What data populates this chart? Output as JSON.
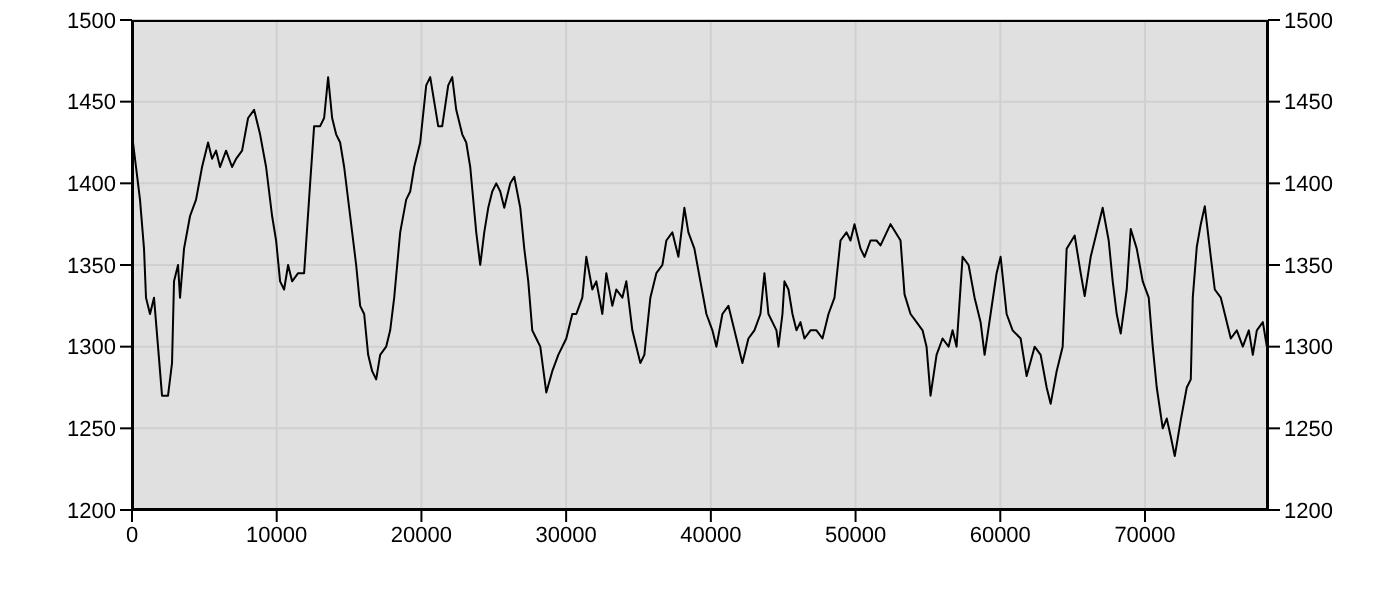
{
  "chart_data": {
    "type": "line",
    "x": [
      0,
      277,
      553,
      830,
      968,
      1245,
      1521,
      1798,
      2075,
      2489,
      2766,
      2904,
      3181,
      3319,
      3596,
      4011,
      4426,
      4841,
      5256,
      5532,
      5809,
      6085,
      6500,
      6915,
      7192,
      7607,
      8022,
      8436,
      8851,
      9266,
      9681,
      9958,
      10234,
      10511,
      10787,
      11064,
      11479,
      11894,
      12309,
      12585,
      13000,
      13277,
      13553,
      13830,
      14107,
      14383,
      14660,
      15075,
      15490,
      15766,
      16043,
      16319,
      16596,
      16873,
      17149,
      17564,
      17841,
      18118,
      18532,
      18947,
      19224,
      19500,
      19915,
      20330,
      20607,
      20883,
      21160,
      21437,
      21851,
      22128,
      22405,
      22820,
      23096,
      23373,
      23788,
      24064,
      24341,
      24617,
      24894,
      25171,
      25447,
      25724,
      26139,
      26415,
      26830,
      27107,
      27383,
      27660,
      27937,
      28213,
      28628,
      29043,
      29458,
      30011,
      30426,
      30703,
      31118,
      31394,
      31809,
      32086,
      32501,
      32777,
      33192,
      33469,
      33884,
      34160,
      34575,
      34852,
      35128,
      35405,
      35820,
      36235,
      36650,
      36926,
      37341,
      37756,
      38171,
      38447,
      38862,
      39277,
      39692,
      40107,
      40384,
      40798,
      41213,
      41628,
      41905,
      42181,
      42596,
      43011,
      43426,
      43703,
      43979,
      44256,
      44533,
      44671,
      44948,
      45086,
      45363,
      45640,
      45916,
      46193,
      46470,
      46885,
      47299,
      47714,
      48129,
      48544,
      48959,
      49374,
      49650,
      49927,
      50342,
      50618,
      51033,
      51448,
      51725,
      52416,
      53107,
      53384,
      53799,
      54214,
      54629,
      54905,
      55182,
      55597,
      56012,
      56427,
      56703,
      56980,
      57395,
      57810,
      58225,
      58640,
      58917,
      59331,
      59746,
      60023,
      60438,
      60853,
      61406,
      61822,
      62375,
      62790,
      63205,
      63481,
      63896,
      64311,
      64587,
      65141,
      65556,
      65833,
      66247,
      66662,
      67077,
      67492,
      67769,
      68045,
      68322,
      68737,
      69014,
      69429,
      69844,
      70258,
      70535,
      70812,
      71227,
      71503,
      71780,
      72057,
      72472,
      72887,
      73164,
      73302,
      73578,
      73855,
      74132,
      74547,
      74823,
      75238,
      75515,
      75930,
      76345,
      76760,
      77174,
      77451,
      77728,
      78143,
      78420
    ],
    "series": [
      {
        "color": "#000000",
        "values": [
          1430,
          1410,
          1390,
          1360,
          1330,
          1320,
          1330,
          1300,
          1270,
          1270,
          1290,
          1340,
          1350,
          1330,
          1360,
          1380,
          1390,
          1410,
          1425,
          1415,
          1420,
          1410,
          1420,
          1410,
          1415,
          1420,
          1440,
          1445,
          1430,
          1410,
          1380,
          1365,
          1340,
          1335,
          1350,
          1340,
          1345,
          1345,
          1400,
          1435,
          1435,
          1440,
          1465,
          1440,
          1430,
          1425,
          1410,
          1380,
          1350,
          1325,
          1320,
          1295,
          1285,
          1280,
          1295,
          1300,
          1310,
          1330,
          1370,
          1390,
          1395,
          1410,
          1425,
          1460,
          1465,
          1450,
          1435,
          1435,
          1460,
          1465,
          1445,
          1430,
          1425,
          1410,
          1370,
          1350,
          1370,
          1385,
          1395,
          1400,
          1395,
          1385,
          1400,
          1404,
          1385,
          1360,
          1340,
          1310,
          1305,
          1300,
          1272,
          1285,
          1295,
          1305,
          1320,
          1320,
          1330,
          1355,
          1335,
          1340,
          1320,
          1345,
          1325,
          1335,
          1330,
          1340,
          1310,
          1300,
          1290,
          1295,
          1330,
          1345,
          1350,
          1365,
          1370,
          1355,
          1385,
          1370,
          1360,
          1340,
          1320,
          1310,
          1300,
          1320,
          1325,
          1310,
          1300,
          1290,
          1305,
          1310,
          1320,
          1345,
          1320,
          1315,
          1310,
          1300,
          1320,
          1340,
          1335,
          1320,
          1310,
          1315,
          1305,
          1310,
          1310,
          1305,
          1320,
          1330,
          1365,
          1370,
          1365,
          1375,
          1360,
          1355,
          1365,
          1365,
          1362,
          1375,
          1365,
          1332,
          1320,
          1315,
          1310,
          1300,
          1270,
          1295,
          1305,
          1300,
          1310,
          1300,
          1355,
          1350,
          1330,
          1315,
          1295,
          1320,
          1345,
          1355,
          1320,
          1310,
          1305,
          1282,
          1300,
          1295,
          1275,
          1265,
          1285,
          1300,
          1360,
          1368,
          1345,
          1331,
          1355,
          1370,
          1385,
          1365,
          1340,
          1320,
          1308,
          1335,
          1372,
          1360,
          1340,
          1330,
          1300,
          1275,
          1250,
          1256,
          1245,
          1233,
          1255,
          1275,
          1280,
          1330,
          1361,
          1375,
          1386,
          1355,
          1335,
          1330,
          1320,
          1305,
          1310,
          1300,
          1310,
          1295,
          1310,
          1315,
          1300
        ]
      }
    ],
    "xlim": [
      0,
      78500
    ],
    "xticks": [
      0,
      10000,
      20000,
      30000,
      40000,
      50000,
      60000,
      70000
    ],
    "ylim": [
      1200,
      1500
    ],
    "yticks": [
      1200,
      1250,
      1300,
      1350,
      1400,
      1450,
      1500
    ],
    "y2lim": [
      1200,
      1500
    ],
    "y2ticks": [
      1200,
      1250,
      1300,
      1350,
      1400,
      1450,
      1500
    ],
    "grid": true,
    "marker": "none",
    "line_style": "solid"
  }
}
